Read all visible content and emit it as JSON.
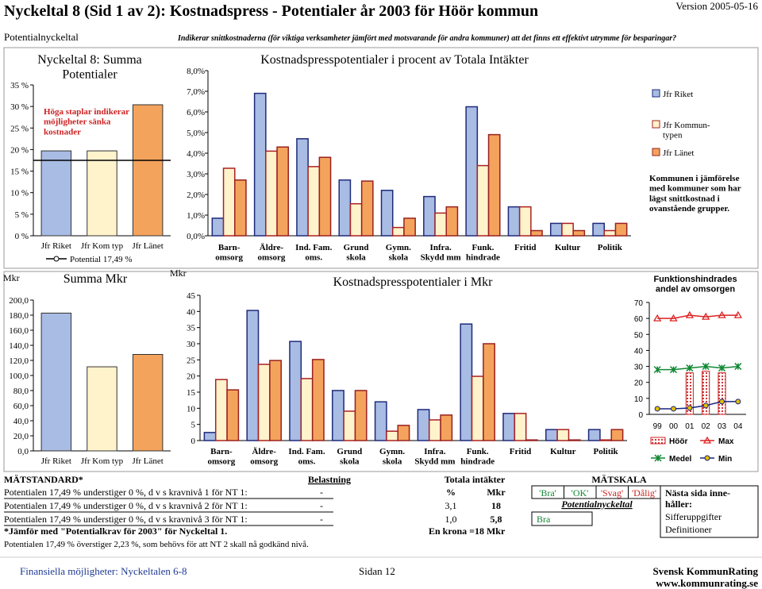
{
  "header": {
    "title": "Nyckeltal 8 (Sid 1 av 2): Kostnadspress - Potentialer år 2003 för Höör kommun",
    "version": "Version 2005-05-16",
    "section": "Potentialnyckeltal",
    "subtitle": "Indikerar snittkostnaderna (för viktiga verksamheter jämfört med motsvarande för andra kommuner) att det finns ett effektivt utrymme för besparingar?"
  },
  "chart_data": [
    {
      "type": "bar",
      "title": "Nyckeltal 8: Summa\nPotentialer",
      "annotation": "Höga staplar indikerar\nmöjligheter sänka\nkostnader",
      "categories": [
        "Jfr Riket",
        "Jfr Kom typ",
        "Jfr Länet"
      ],
      "values": [
        19.7,
        19.7,
        30.4
      ],
      "colors": [
        "#a8bce4",
        "#fff3cc",
        "#f4a35c"
      ],
      "line": {
        "name": "Potential 17,49 %",
        "value": 17.49
      },
      "ylim": [
        0,
        35
      ],
      "yticks": [
        {
          "value": 0,
          "label": "0 %"
        },
        {
          "value": 5,
          "label": "5 %"
        },
        {
          "value": 10,
          "label": "10 %"
        },
        {
          "value": 15,
          "label": "15 %"
        },
        {
          "value": 20,
          "label": "20 %"
        },
        {
          "value": 25,
          "label": "25 %"
        },
        {
          "value": 30,
          "label": "30 %"
        },
        {
          "value": 35,
          "label": "35 %"
        }
      ]
    },
    {
      "type": "bar",
      "title": "Kostnadspresspotentialer i procent av Totala Intäkter",
      "note": "Kommunen i jämförelse\nmed kommuner som har\nlägst snittkostnad i\novanstående grupper.",
      "categories": [
        "Barn-\nomsorg",
        "Äldre-\nomsorg",
        "Ind. Fam.\noms.",
        "Grund\nskola",
        "Gymn.\nskola",
        "Infra.\nSkydd mm",
        "Funk.\nhindrade",
        "Fritid",
        "Kultur",
        "Politik"
      ],
      "series": [
        {
          "name": "Jfr Riket",
          "color": "#a8bce4",
          "values": [
            0.85,
            6.9,
            4.7,
            2.7,
            2.2,
            1.9,
            6.25,
            1.4,
            0.6,
            0.6
          ]
        },
        {
          "name": "Jfr Kommun-\ntypen",
          "color": "#fff3cc",
          "values": [
            3.27,
            4.1,
            3.35,
            1.55,
            0.4,
            1.1,
            3.4,
            1.4,
            0.6,
            0.25
          ]
        },
        {
          "name": "Jfr Länet",
          "color": "#f4a35c",
          "values": [
            2.7,
            4.3,
            3.8,
            2.65,
            0.85,
            1.4,
            4.9,
            0.25,
            0.25,
            0.6
          ]
        }
      ],
      "ylim": [
        0,
        8
      ],
      "yticks": [
        {
          "value": 0,
          "label": "0,0%"
        },
        {
          "value": 1,
          "label": "1,0%"
        },
        {
          "value": 2,
          "label": "2,0%"
        },
        {
          "value": 3,
          "label": "3,0%"
        },
        {
          "value": 4,
          "label": "4,0%"
        },
        {
          "value": 5,
          "label": "5,0%"
        },
        {
          "value": 6,
          "label": "6,0%"
        },
        {
          "value": 7,
          "label": "7,0%"
        },
        {
          "value": 8,
          "label": "8,0%"
        }
      ]
    },
    {
      "type": "bar",
      "title": "Summa Mkr",
      "y_unit": "Mkr",
      "categories": [
        "Jfr Riket",
        "Jfr Kom typ",
        "Jfr Länet"
      ],
      "values": [
        182.7,
        111.5,
        127.9
      ],
      "colors": [
        "#a8bce4",
        "#fff3cc",
        "#f4a35c"
      ],
      "ylim": [
        0,
        200
      ],
      "yticks": [
        {
          "value": 0,
          "label": "0,0"
        },
        {
          "value": 20,
          "label": "20,0"
        },
        {
          "value": 40,
          "label": "40,0"
        },
        {
          "value": 60,
          "label": "60,0"
        },
        {
          "value": 80,
          "label": "80,0"
        },
        {
          "value": 100,
          "label": "100,0"
        },
        {
          "value": 120,
          "label": "120,0"
        },
        {
          "value": 140,
          "label": "140,0"
        },
        {
          "value": 160,
          "label": "160,0"
        },
        {
          "value": 180,
          "label": "180,0"
        },
        {
          "value": 200,
          "label": "200,0"
        }
      ]
    },
    {
      "type": "bar",
      "title": "Kostnadspresspotentialer i Mkr",
      "y_unit": "Mkr",
      "categories": [
        "Barn-\nomsorg",
        "Äldre-\nomsorg",
        "Ind. Fam.\noms.",
        "Grund\nskola",
        "Gymn.\nskola",
        "Infra.\nSkydd mm",
        "Funk.\nhindrade",
        "Fritid",
        "Kultur",
        "Politik"
      ],
      "series": [
        {
          "color": "#a8bce4",
          "values": [
            2.5,
            40.3,
            30.7,
            15.5,
            12.0,
            9.6,
            36.1,
            8.4,
            3.4,
            3.4
          ]
        },
        {
          "color": "#fff3cc",
          "values": [
            18.9,
            23.6,
            19.2,
            9.1,
            2.9,
            6.4,
            19.9,
            8.4,
            3.4,
            0.2
          ]
        },
        {
          "color": "#f4a35c",
          "values": [
            15.7,
            24.8,
            25.1,
            15.5,
            4.7,
            7.9,
            30.0,
            0.2,
            0.2,
            3.4
          ]
        }
      ],
      "ylim": [
        0,
        45
      ],
      "yticks": [
        0,
        5,
        10,
        15,
        20,
        25,
        30,
        35,
        40,
        45
      ]
    },
    {
      "type": "line",
      "title": "Funktionshindrades\nandel av omsorgen",
      "categories": [
        "99",
        "00",
        "01",
        "02",
        "03",
        "04"
      ],
      "series": [
        {
          "name": "Höör",
          "mark": "bar",
          "color": "#cc2222",
          "values": [
            null,
            null,
            26,
            27,
            26,
            null
          ]
        },
        {
          "name": "Max",
          "mark": "triangle",
          "color": "#dd2222",
          "values": [
            60,
            60,
            62,
            61,
            62,
            62
          ]
        },
        {
          "name": "Medel",
          "mark": "x",
          "color": "#118833",
          "values": [
            28,
            28,
            29,
            30,
            29,
            30
          ]
        },
        {
          "name": "Min",
          "mark": "circle",
          "color": "#1a237e",
          "values": [
            3.5,
            3.5,
            4,
            5.5,
            8,
            8
          ]
        }
      ],
      "ylim": [
        0,
        70
      ],
      "yticks": [
        0,
        10,
        20,
        30,
        40,
        50,
        60,
        70
      ]
    }
  ],
  "table": {
    "title": "MÄTSTANDARD*",
    "load_header": "Belastning",
    "rows": [
      [
        "Potentialen 17,49 % understiger 0 %, d v s kravnivå 1 för NT 1:",
        "-"
      ],
      [
        "Potentialen 17,49 % understiger 0 %, d v s kravnivå 2 för NT 1:",
        "-"
      ],
      [
        "Potentialen 17,49 % understiger 0 %, d v s kravnivå 3 för NT 1:",
        "-"
      ]
    ],
    "footnote": "*Jämför med \"Potentialkrav för 2003\" för Nyckeltal 1.",
    "remark": "Potentialen 17,49 % överstiger 2,23 %, som behövs för att NT 2 skall nå godkänd nivå."
  },
  "income": {
    "title": "Totala intäkter",
    "columns": [
      "%",
      "Mkr"
    ],
    "rows": [
      [
        "3,1",
        "18"
      ],
      [
        "1,0",
        "5,8"
      ]
    ],
    "note": "En krona =18 Mkr"
  },
  "scale": {
    "title": "MÄTSKALA",
    "levels": [
      "'Bra'",
      "'OK'",
      "'Svag'",
      "'Dålig'"
    ],
    "label": "Potentialnyckeltal",
    "result": "Bra"
  },
  "next_page": {
    "title": "Nästa sida inne-\nhåller:",
    "items": [
      "Sifferuppgifter",
      "Definitioner"
    ]
  },
  "footer": {
    "left": "Finansiella möjligheter: Nyckeltalen 6-8",
    "center": "Sidan 12",
    "org": "Svensk KommunRating",
    "url": "www.kommunrating.se"
  }
}
